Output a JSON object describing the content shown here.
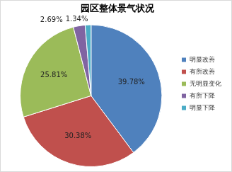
{
  "chart_data": {
    "type": "pie",
    "title": "园区整体景气状况",
    "categories": [
      "明显改善",
      "有所改善",
      "无明显变化",
      "有所下降",
      "明显下降"
    ],
    "values": [
      39.78,
      30.38,
      25.81,
      2.69,
      1.34
    ],
    "value_labels": [
      "39.78%",
      "30.38%",
      "25.81%",
      "2.69%",
      "1.34%"
    ],
    "colors": [
      "#4f81bd",
      "#c0504d",
      "#9bbb59",
      "#8064a2",
      "#4bacc6"
    ],
    "legend": "right",
    "data_labels": true
  }
}
